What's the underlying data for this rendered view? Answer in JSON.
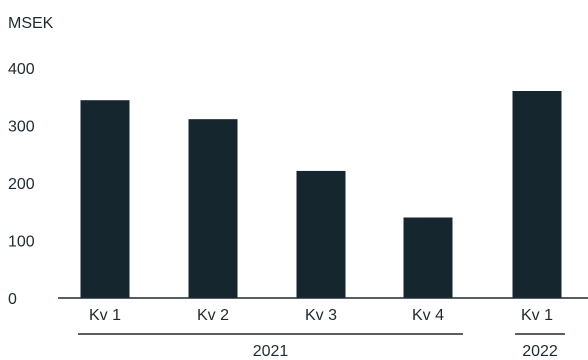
{
  "chart_data": {
    "type": "bar",
    "ylabel": "MSEK",
    "ylim": [
      0,
      400
    ],
    "yticks": [
      0,
      100,
      200,
      300,
      400
    ],
    "categories": [
      "Kv 1",
      "Kv 2",
      "Kv 3",
      "Kv 4",
      "Kv 1"
    ],
    "values": [
      344,
      311,
      221,
      140,
      360
    ],
    "groups": [
      {
        "label": "2021",
        "members": [
          0,
          1,
          2,
          3
        ]
      },
      {
        "label": "2022",
        "members": [
          4
        ]
      }
    ],
    "bar_color": "#16262f",
    "grid": false
  }
}
